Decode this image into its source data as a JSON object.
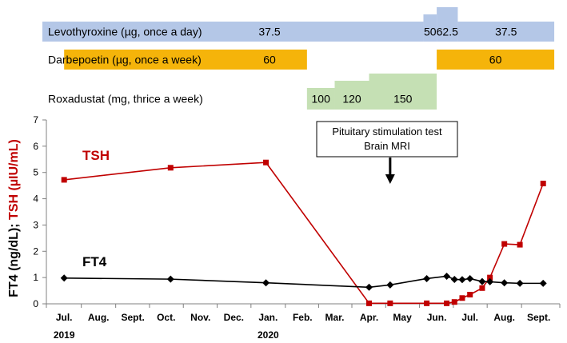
{
  "colors": {
    "levo": "#b4c7e7",
    "darbe": "#f5b40a",
    "roxa": "#c5e0b4",
    "tsh": "#c00000",
    "ft4": "#000000",
    "axis": "#808080"
  },
  "treatments": [
    {
      "label": "Levothyroxine (µg, once a day)",
      "color_key": "levo",
      "segments": [
        {
          "start": "2019-07-01",
          "end": "2020-05-20",
          "level": 0,
          "dose": "37.5"
        },
        {
          "start": "2020-05-20",
          "end": "2020-06-01",
          "level": 1,
          "dose": "50"
        },
        {
          "start": "2020-06-01",
          "end": "2020-06-20",
          "level": 2,
          "dose": "62.5"
        },
        {
          "start": "2020-06-20",
          "end": "2020-09-15",
          "level": 0,
          "dose": "37.5"
        }
      ]
    },
    {
      "label": "Darbepoetin (µg, once a week)",
      "color_key": "darbe",
      "segments": [
        {
          "start": "2019-07-01",
          "end": "2020-02-05",
          "level": 0,
          "dose": "60"
        },
        {
          "start": "2020-06-01",
          "end": "2020-09-15",
          "level": 0,
          "dose": "60"
        }
      ]
    },
    {
      "label": "Roxadustat (mg, thrice a week)",
      "color_key": "roxa",
      "segments": [
        {
          "start": "2020-02-05",
          "end": "2020-03-01",
          "level": 0,
          "dose": "100"
        },
        {
          "start": "2020-03-01",
          "end": "2020-04-01",
          "level": 1,
          "dose": "120"
        },
        {
          "start": "2020-04-01",
          "end": "2020-06-01",
          "level": 2,
          "dose": "150"
        }
      ]
    }
  ],
  "annotation": {
    "lines": [
      "Pituitary stimulation test",
      "Brain MRI"
    ],
    "arrow_date": "2020-04-20"
  },
  "chart_data": {
    "type": "line",
    "title": "",
    "ylabel_parts": [
      "FT4 (ng/dL); ",
      "TSH (µIU/mL)"
    ],
    "ylim": [
      0,
      7
    ],
    "yticks": [
      0,
      1,
      2,
      3,
      4,
      5,
      6,
      7
    ],
    "xlim": [
      "2019-06-15",
      "2020-09-20"
    ],
    "xticks": [
      {
        "date": "2019-07-01",
        "label": "Jul."
      },
      {
        "date": "2019-08-01",
        "label": "Aug."
      },
      {
        "date": "2019-09-01",
        "label": "Sept."
      },
      {
        "date": "2019-10-01",
        "label": "Oct."
      },
      {
        "date": "2019-11-01",
        "label": "Nov."
      },
      {
        "date": "2019-12-01",
        "label": "Dec."
      },
      {
        "date": "2020-01-01",
        "label": "Jan."
      },
      {
        "date": "2020-02-01",
        "label": "Feb."
      },
      {
        "date": "2020-03-01",
        "label": "Mar."
      },
      {
        "date": "2020-04-01",
        "label": "Apr."
      },
      {
        "date": "2020-05-01",
        "label": "May"
      },
      {
        "date": "2020-06-01",
        "label": "Jun."
      },
      {
        "date": "2020-07-01",
        "label": "Jul."
      },
      {
        "date": "2020-08-01",
        "label": "Aug."
      },
      {
        "date": "2020-09-01",
        "label": "Sept."
      }
    ],
    "year_labels": [
      {
        "date": "2019-07-01",
        "label": "2019"
      },
      {
        "date": "2020-01-01",
        "label": "2020"
      }
    ],
    "series": [
      {
        "name": "TSH",
        "color_key": "tsh",
        "marker": "square",
        "points": [
          {
            "x": "2019-07-01",
            "y": 4.72
          },
          {
            "x": "2019-10-05",
            "y": 5.18
          },
          {
            "x": "2019-12-30",
            "y": 5.38
          },
          {
            "x": "2020-04-01",
            "y": 0.02
          },
          {
            "x": "2020-04-20",
            "y": 0.02
          },
          {
            "x": "2020-05-23",
            "y": 0.02
          },
          {
            "x": "2020-06-10",
            "y": 0.02
          },
          {
            "x": "2020-06-17",
            "y": 0.07
          },
          {
            "x": "2020-06-24",
            "y": 0.22
          },
          {
            "x": "2020-07-01",
            "y": 0.35
          },
          {
            "x": "2020-07-12",
            "y": 0.6
          },
          {
            "x": "2020-07-19",
            "y": 1.0
          },
          {
            "x": "2020-08-01",
            "y": 2.28
          },
          {
            "x": "2020-08-15",
            "y": 2.25
          },
          {
            "x": "2020-09-05",
            "y": 4.58
          }
        ]
      },
      {
        "name": "FT4",
        "color_key": "ft4",
        "marker": "diamond",
        "points": [
          {
            "x": "2019-07-01",
            "y": 0.98
          },
          {
            "x": "2019-10-05",
            "y": 0.94
          },
          {
            "x": "2019-12-30",
            "y": 0.8
          },
          {
            "x": "2020-04-01",
            "y": 0.63
          },
          {
            "x": "2020-04-20",
            "y": 0.72
          },
          {
            "x": "2020-05-23",
            "y": 0.96
          },
          {
            "x": "2020-06-10",
            "y": 1.05
          },
          {
            "x": "2020-06-17",
            "y": 0.93
          },
          {
            "x": "2020-06-24",
            "y": 0.92
          },
          {
            "x": "2020-07-01",
            "y": 0.96
          },
          {
            "x": "2020-07-12",
            "y": 0.85
          },
          {
            "x": "2020-07-19",
            "y": 0.84
          },
          {
            "x": "2020-08-01",
            "y": 0.8
          },
          {
            "x": "2020-08-15",
            "y": 0.78
          },
          {
            "x": "2020-09-05",
            "y": 0.78
          }
        ]
      }
    ]
  }
}
